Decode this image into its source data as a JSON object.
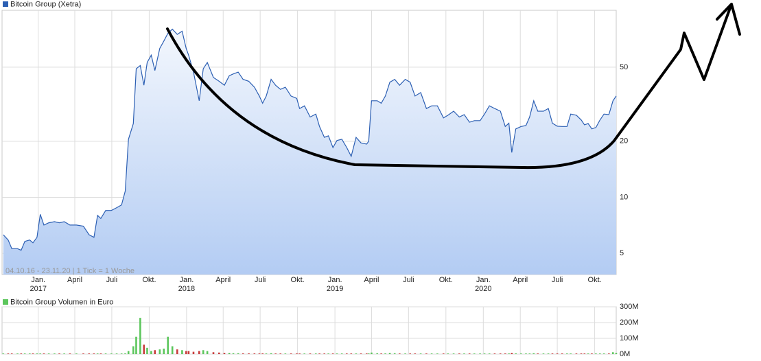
{
  "chart_data": [
    {
      "type": "area",
      "log": true,
      "grid": true,
      "note": "04.10.16 - 23.11.20 | 1 Tick = 1 Woche",
      "x": [
        "2016-10-07",
        "2016-10-19",
        "2016-10-28",
        "2016-11-11",
        "2016-11-20",
        "2016-11-29",
        "2016-12-11",
        "2016-12-19",
        "2016-12-29",
        "2017-01-06",
        "2017-01-15",
        "2017-01-27",
        "2017-02-10",
        "2017-02-22",
        "2017-03-06",
        "2017-03-20",
        "2017-04-05",
        "2017-04-22",
        "2017-05-06",
        "2017-05-18",
        "2017-05-27",
        "2017-06-04",
        "2017-06-16",
        "2017-06-30",
        "2017-07-13",
        "2017-07-25",
        "2017-08-03",
        "2017-08-11",
        "2017-08-23",
        "2017-08-30",
        "2017-09-09",
        "2017-09-18",
        "2017-09-26",
        "2017-10-06",
        "2017-10-15",
        "2017-10-27",
        "2017-11-06",
        "2017-11-16",
        "2017-11-27",
        "2017-12-09",
        "2017-12-21",
        "2017-12-31",
        "2018-01-06",
        "2018-01-18",
        "2018-02-01",
        "2018-02-11",
        "2018-02-21",
        "2018-03-08",
        "2018-03-22",
        "2018-04-04",
        "2018-04-16",
        "2018-04-26",
        "2018-05-08",
        "2018-05-20",
        "2018-06-03",
        "2018-06-17",
        "2018-06-29",
        "2018-07-07",
        "2018-07-16",
        "2018-07-28",
        "2018-08-08",
        "2018-08-20",
        "2018-09-01",
        "2018-09-15",
        "2018-09-29",
        "2018-10-06",
        "2018-10-18",
        "2018-11-01",
        "2018-11-15",
        "2018-11-24",
        "2018-12-06",
        "2018-12-16",
        "2018-12-27",
        "2019-01-06",
        "2019-01-18",
        "2019-01-30",
        "2019-02-10",
        "2019-02-22",
        "2019-03-06",
        "2019-03-20",
        "2019-03-25",
        "2019-04-01",
        "2019-04-15",
        "2019-04-25",
        "2019-05-05",
        "2019-05-16",
        "2019-05-28",
        "2019-06-09",
        "2019-06-23",
        "2019-07-05",
        "2019-07-17",
        "2019-07-31",
        "2019-08-14",
        "2019-08-27",
        "2019-09-10",
        "2019-09-25",
        "2019-10-06",
        "2019-10-20",
        "2019-11-03",
        "2019-11-15",
        "2019-11-28",
        "2019-12-10",
        "2019-12-24",
        "2020-01-04",
        "2020-01-16",
        "2020-01-29",
        "2020-02-12",
        "2020-02-24",
        "2020-03-04",
        "2020-03-11",
        "2020-03-21",
        "2020-04-03",
        "2020-04-15",
        "2020-04-24",
        "2020-05-04",
        "2020-05-14",
        "2020-05-28",
        "2020-06-09",
        "2020-06-19",
        "2020-07-01",
        "2020-07-13",
        "2020-07-25",
        "2020-08-03",
        "2020-08-17",
        "2020-08-29",
        "2020-09-06",
        "2020-09-15",
        "2020-09-24",
        "2020-10-04",
        "2020-10-14",
        "2020-10-24",
        "2020-11-05",
        "2020-11-15",
        "2020-11-23"
      ],
      "series": [
        {
          "name": "Bitcoin Group (Xetra)",
          "color": "#2c5fb3",
          "values": [
            6.3,
            5.9,
            5.3,
            5.3,
            5.2,
            5.8,
            5.9,
            5.7,
            6.1,
            8.1,
            7.1,
            7.3,
            7.4,
            7.3,
            7.4,
            7.1,
            7.1,
            7.0,
            6.3,
            6.1,
            8.0,
            7.7,
            8.5,
            8.5,
            8.8,
            9.1,
            10.8,
            20.5,
            24.9,
            49,
            51,
            40,
            53,
            58,
            48,
            63,
            69,
            76,
            80,
            75,
            78,
            63,
            58,
            47,
            33,
            49,
            53,
            44,
            42,
            40,
            45,
            46,
            47,
            43,
            42,
            39,
            35,
            32,
            35,
            43,
            40,
            38,
            39,
            35,
            34,
            30,
            31,
            27,
            28,
            24,
            21,
            21.4,
            18.5,
            20.2,
            20.5,
            18.5,
            16.6,
            21,
            19.6,
            19.3,
            20,
            33,
            33,
            32,
            35,
            41.5,
            43,
            40,
            43,
            41.5,
            35,
            36.5,
            30,
            31,
            31,
            26.7,
            27.6,
            29,
            27,
            27.8,
            25.3,
            25.8,
            25.8,
            28,
            31,
            30,
            29,
            24,
            25,
            17.4,
            23.3,
            24,
            24.3,
            27,
            33,
            29,
            29,
            30,
            25,
            24.1,
            24,
            24,
            28,
            27.6,
            26,
            24.5,
            24.9,
            23.3,
            23.7,
            26,
            28,
            27.8,
            33,
            35
          ]
        }
      ],
      "xlim": [
        "2016-10-04",
        "2020-11-23"
      ],
      "xticks": [
        {
          "value": "2017-01-01",
          "label": "Jan.",
          "year": "2017"
        },
        {
          "value": "2017-04-01",
          "label": "April"
        },
        {
          "value": "2017-07-01",
          "label": "Juli"
        },
        {
          "value": "2017-10-01",
          "label": "Okt."
        },
        {
          "value": "2018-01-01",
          "label": "Jan.",
          "year": "2018"
        },
        {
          "value": "2018-04-01",
          "label": "April"
        },
        {
          "value": "2018-07-01",
          "label": "Juli"
        },
        {
          "value": "2018-10-01",
          "label": "Okt."
        },
        {
          "value": "2019-01-01",
          "label": "Jan.",
          "year": "2019"
        },
        {
          "value": "2019-04-01",
          "label": "April"
        },
        {
          "value": "2019-07-01",
          "label": "Juli"
        },
        {
          "value": "2019-10-01",
          "label": "Okt."
        },
        {
          "value": "2020-01-01",
          "label": "Jan.",
          "year": "2020"
        },
        {
          "value": "2020-04-01",
          "label": "April"
        },
        {
          "value": "2020-07-01",
          "label": "Juli"
        },
        {
          "value": "2020-10-01",
          "label": "Okt."
        }
      ],
      "ylim": [
        3.85,
        101
      ],
      "yticks": [
        5,
        10,
        20,
        50
      ]
    },
    {
      "type": "bar",
      "grid": true,
      "down_color": "#c83c3c",
      "series": [
        {
          "name": "Bitcoin Group Volumen in Euro",
          "color": "#5cc65c",
          "values": [
            1,
            1,
            1,
            1,
            1,
            1,
            1,
            1,
            1,
            2,
            1,
            1,
            1,
            1,
            1,
            1,
            1,
            1,
            1,
            1,
            2,
            1,
            2,
            1,
            2,
            2,
            5,
            20,
            50,
            110,
            230,
            60,
            40,
            20,
            25,
            30,
            35,
            110,
            50,
            30,
            25,
            20,
            20,
            15,
            20,
            25,
            20,
            12,
            10,
            8,
            8,
            6,
            6,
            5,
            5,
            5,
            4,
            5,
            4,
            6,
            4,
            3,
            3,
            3,
            3,
            3,
            2,
            3,
            2,
            3,
            2,
            2,
            2,
            2,
            2,
            2,
            2,
            3,
            2,
            2,
            2,
            10,
            6,
            4,
            5,
            8,
            6,
            4,
            4,
            3,
            3,
            3,
            3,
            2,
            2,
            2,
            2,
            2,
            2,
            2,
            2,
            2,
            2,
            2,
            3,
            2,
            2,
            3,
            4,
            8,
            5,
            3,
            3,
            3,
            6,
            3,
            2,
            2,
            3,
            2,
            2,
            2,
            3,
            2,
            2,
            2,
            2,
            2,
            2,
            3,
            3,
            4,
            12,
            8
          ]
        }
      ],
      "ylim": [
        0,
        300
      ],
      "yticks": [
        {
          "value": 0,
          "label": "0M"
        },
        {
          "value": 100,
          "label": "100M"
        },
        {
          "value": 200,
          "label": "200M"
        },
        {
          "value": 300,
          "label": "300M"
        }
      ]
    }
  ]
}
